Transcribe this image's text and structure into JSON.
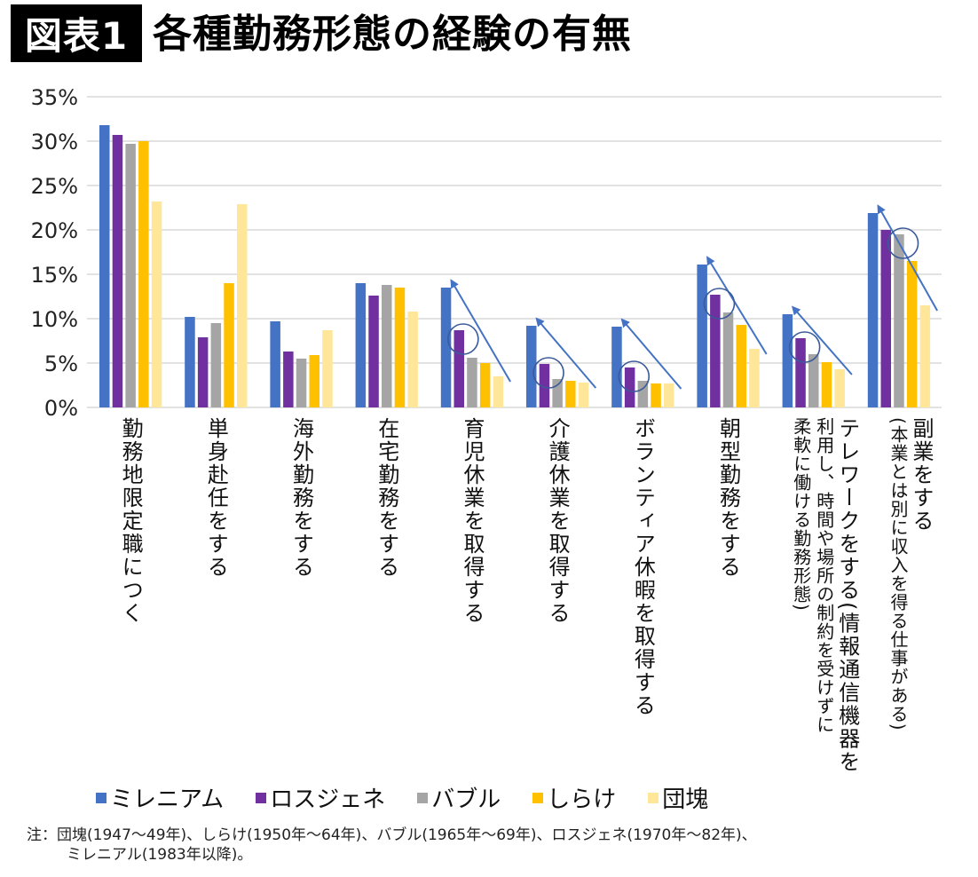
{
  "title": {
    "badge": "図表1",
    "text": "各種勤務形態の経験の有無"
  },
  "chart_data": {
    "type": "bar",
    "title": "各種勤務形態の経験の有無",
    "xlabel": "",
    "ylabel": "",
    "ylim": [
      0,
      35
    ],
    "yticks": [
      0,
      5,
      10,
      15,
      20,
      25,
      30,
      35
    ],
    "ytick_labels": [
      "0%",
      "5%",
      "10%",
      "15%",
      "20%",
      "25%",
      "30%",
      "35%"
    ],
    "grid": true,
    "legend_position": "bottom",
    "categories": [
      {
        "main": "勤務地限定職につく",
        "sub": []
      },
      {
        "main": "単身赴任をする",
        "sub": []
      },
      {
        "main": "海外勤務をする",
        "sub": []
      },
      {
        "main": "在宅勤務をする",
        "sub": []
      },
      {
        "main": "育児休業を取得する",
        "sub": []
      },
      {
        "main": "介護休業を取得する",
        "sub": []
      },
      {
        "main": "ボランティア休暇を取得する",
        "sub": []
      },
      {
        "main": "朝型勤務をする",
        "sub": []
      },
      {
        "main": "テレワークをする(情報通信機器を",
        "sub": [
          "利用し、時間や場所の制約を受けずに",
          "柔軟に働ける勤務形態)"
        ]
      },
      {
        "main": "副業をする",
        "sub": [
          "(本業とは別に収入を得る仕事がある)"
        ]
      }
    ],
    "series": [
      {
        "name": "ミレニアム",
        "color": "#4472C4",
        "values": [
          31.8,
          10.2,
          9.7,
          14.0,
          13.5,
          9.2,
          9.1,
          16.1,
          10.5,
          21.9
        ]
      },
      {
        "name": "ロスジェネ",
        "color": "#7030A0",
        "values": [
          30.7,
          7.9,
          6.3,
          12.6,
          8.7,
          4.9,
          4.5,
          12.7,
          7.8,
          20.0
        ]
      },
      {
        "name": "バブル",
        "color": "#A5A5A5",
        "values": [
          29.7,
          9.5,
          5.5,
          13.8,
          5.6,
          3.2,
          3.0,
          10.7,
          6.0,
          19.5
        ]
      },
      {
        "name": "しらけ",
        "color": "#FFC000",
        "values": [
          30.0,
          14.0,
          5.9,
          13.5,
          5.0,
          3.0,
          2.7,
          9.3,
          5.1,
          16.5
        ]
      },
      {
        "name": "団塊",
        "color": "#FFE699",
        "values": [
          23.2,
          22.9,
          8.7,
          10.8,
          3.5,
          2.8,
          2.7,
          6.6,
          4.3,
          11.5
        ]
      }
    ],
    "annotations": {
      "description": "Decreasing-trend arrows and circles highlighting ロスジェネ bars",
      "color": "#4472C4",
      "arrow_categories": [
        4,
        5,
        6,
        7,
        8,
        9
      ],
      "circle_highlights": [
        {
          "category": 4,
          "series": 1
        },
        {
          "category": 5,
          "series": 1
        },
        {
          "category": 6,
          "series": 1
        },
        {
          "category": 7,
          "series": 1
        },
        {
          "category": 8,
          "series": 1
        },
        {
          "category": 9,
          "series": 2
        }
      ]
    }
  },
  "note": {
    "line1": "注：団塊(1947〜49年)、しらけ(1950年〜64年)、バブル(1965年〜69年)、ロスジェネ(1970年〜82年)、",
    "line2": "ミレニアル(1983年以降)。"
  }
}
